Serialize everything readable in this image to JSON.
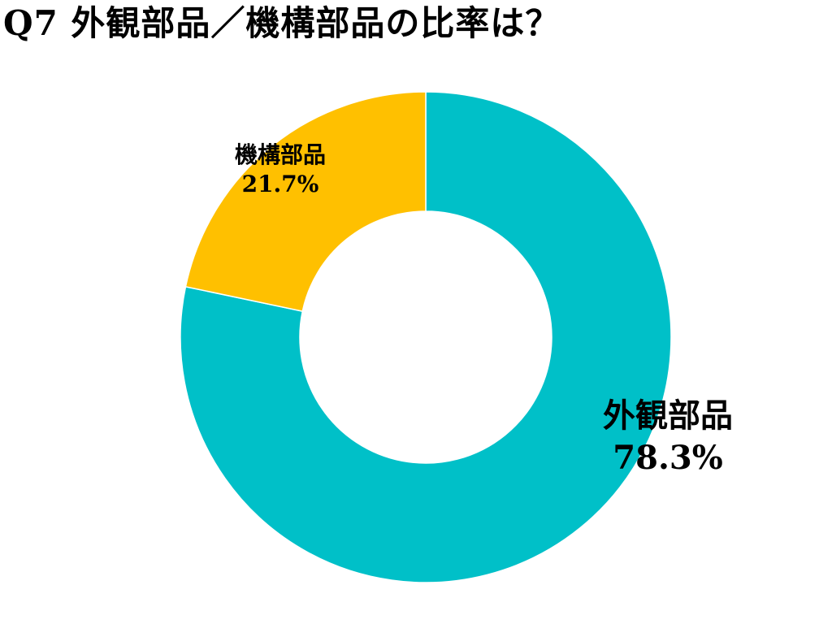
{
  "chart_data": {
    "type": "pie",
    "title": "Q7 外観部品／機構部品の比率は？",
    "categories": [
      "外観部品",
      "機構部品"
    ],
    "values": [
      78.3,
      21.7
    ],
    "value_labels": [
      "78.3%",
      "21.7%"
    ],
    "colors": [
      "#00C0C8",
      "#FFC000"
    ],
    "donut": true,
    "start_angle_deg": 0,
    "direction": "clockwise",
    "legend": "none"
  }
}
